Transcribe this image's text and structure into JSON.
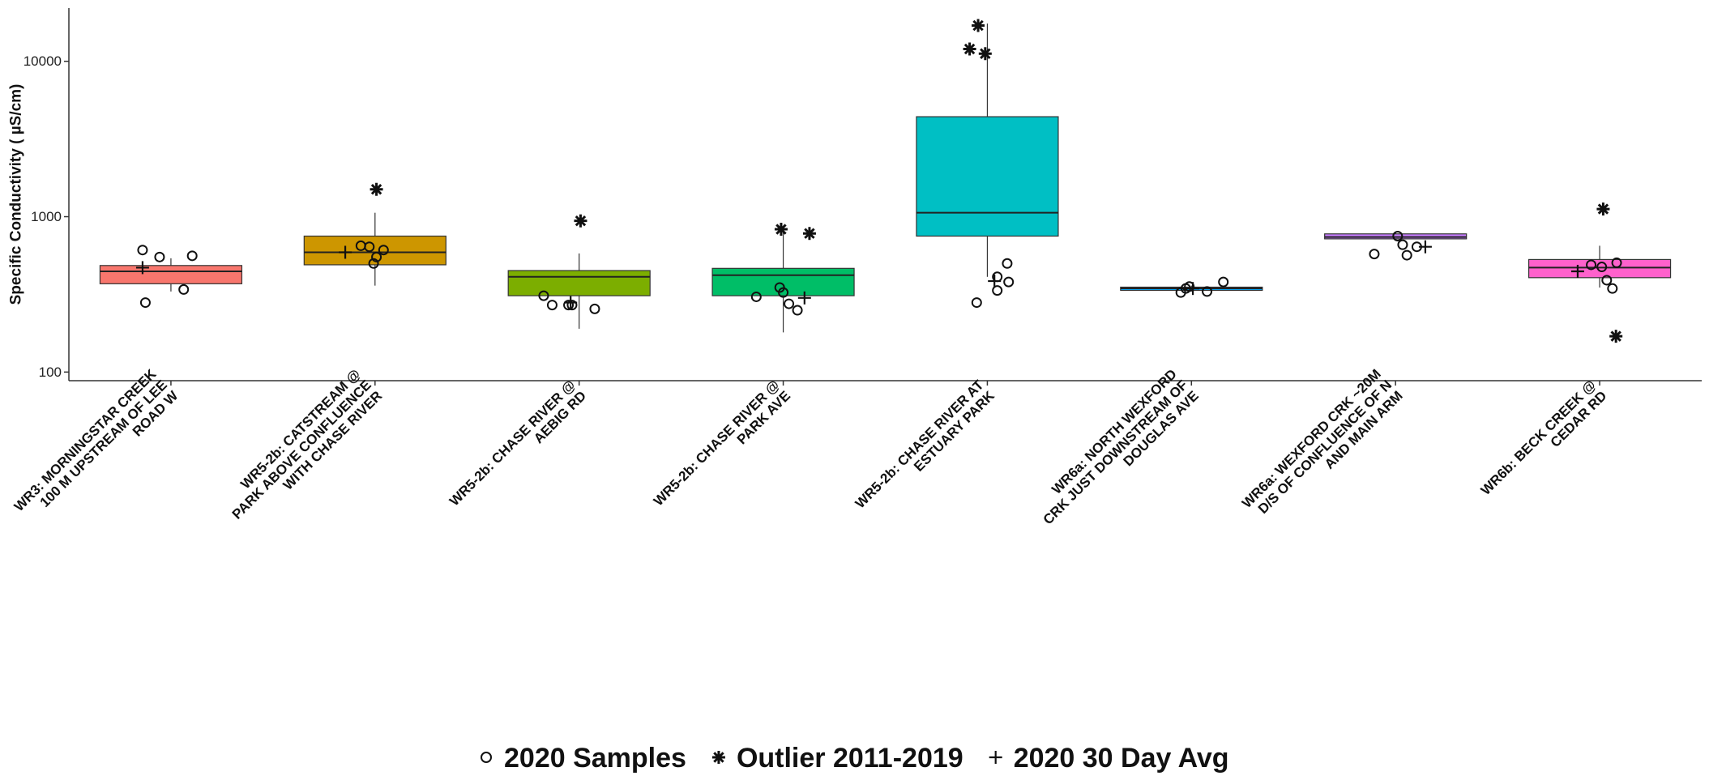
{
  "chart_data": {
    "type": "box",
    "ylabel": "Specific Conductivity ( µS/cm)",
    "yscale": "log",
    "ylim": [
      88,
      22000
    ],
    "yticks": [
      100,
      1000,
      10000
    ],
    "ytick_labels": [
      "100",
      "1000",
      "10000"
    ],
    "grid": false,
    "legend_position": "bottom",
    "legend": [
      {
        "symbol": "circle",
        "label": "2020 Samples"
      },
      {
        "symbol": "asterisk",
        "label": "Outlier 2011-2019"
      },
      {
        "symbol": "plus",
        "label": "2020 30 Day Avg"
      }
    ],
    "categories": [
      {
        "label_lines": [
          "WR3: MORNINGSTAR CREEK",
          "100 M UPSTREAM OF LEE",
          "ROAD W"
        ],
        "color": "#F8766D",
        "box": {
          "q1": 370,
          "median": 445,
          "q3": 485,
          "whisker_low": 330,
          "whisker_high": 540
        },
        "samples": [
          610,
          550,
          560,
          340,
          280
        ],
        "outliers": [],
        "avg_30day": 470
      },
      {
        "label_lines": [
          "WR5-2b: CATSTREAM @",
          "PARK ABOVE CONFLUENCE",
          "WITH CHASE RIVER"
        ],
        "color": "#CD9600",
        "box": {
          "q1": 490,
          "median": 590,
          "q3": 750,
          "whisker_low": 360,
          "whisker_high": 1060
        },
        "samples": [
          650,
          640,
          610,
          550,
          500
        ],
        "outliers": [
          1500
        ],
        "avg_30day": 590
      },
      {
        "label_lines": [
          "WR5-2b: CHASE RIVER @",
          "AEBIG RD"
        ],
        "color": "#7CAE00",
        "box": {
          "q1": 310,
          "median": 410,
          "q3": 450,
          "whisker_low": 190,
          "whisker_high": 580
        },
        "samples": [
          310,
          270,
          270,
          270,
          255
        ],
        "outliers": [
          940
        ],
        "avg_30day": 280
      },
      {
        "label_lines": [
          "WR5-2b: CHASE RIVER @",
          "PARK AVE"
        ],
        "color": "#00BE67",
        "box": {
          "q1": 310,
          "median": 420,
          "q3": 465,
          "whisker_low": 180,
          "whisker_high": 830
        },
        "samples": [
          350,
          325,
          305,
          275,
          250
        ],
        "outliers": [
          830,
          780
        ],
        "avg_30day": 300
      },
      {
        "label_lines": [
          "WR5-2b: CHASE RIVER AT",
          "ESTUARY PARK"
        ],
        "color": "#00BFC4",
        "box": {
          "q1": 750,
          "median": 1060,
          "q3": 4400,
          "whisker_low": 410,
          "whisker_high": 17500
        },
        "samples": [
          500,
          410,
          380,
          335,
          280
        ],
        "outliers": [
          17000,
          12000,
          11200
        ],
        "avg_30day": 385
      },
      {
        "label_lines": [
          "WR6a: NORTH WEXFORD",
          "CRK JUST DOWNSTREAM OF",
          "DOUGLAS AVE"
        ],
        "color": "#00A9FF",
        "box": {
          "q1": 340,
          "median": 346,
          "q3": 352,
          "whisker_low": 330,
          "whisker_high": 360
        },
        "samples": [
          380,
          355,
          345,
          330,
          325
        ],
        "outliers": [],
        "avg_30day": 345
      },
      {
        "label_lines": [
          "WR6a: WEXFORD CRK ~20M",
          "D/S OF CONFLUENCE OF N",
          "AND MAIN ARM"
        ],
        "color": "#C77CFF",
        "box": {
          "q1": 720,
          "median": 740,
          "q3": 775,
          "whisker_low": 700,
          "whisker_high": 800
        },
        "samples": [
          750,
          660,
          640,
          575,
          565
        ],
        "outliers": [],
        "avg_30day": 640
      },
      {
        "label_lines": [
          "WR6b: BECK CREEK @",
          "CEDAR RD"
        ],
        "color": "#FF61CC",
        "box": {
          "q1": 405,
          "median": 470,
          "q3": 530,
          "whisker_low": 350,
          "whisker_high": 650
        },
        "samples": [
          505,
          490,
          475,
          390,
          345
        ],
        "outliers": [
          1120,
          170
        ],
        "avg_30day": 445
      }
    ]
  }
}
